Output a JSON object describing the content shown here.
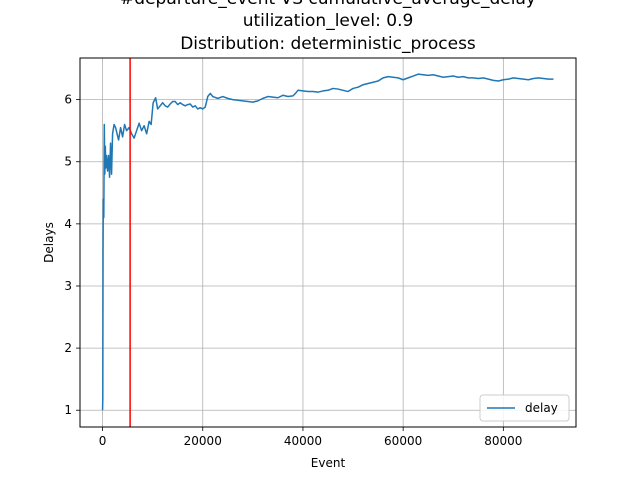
{
  "chart_data": {
    "type": "line",
    "title_lines": [
      "#departure_event VS cumulative_average_delay",
      "utilization_level: 0.9",
      "Distribution: deterministic_process"
    ],
    "xlabel": "Event",
    "ylabel": "Delays",
    "xlim": [
      -4500,
      94500
    ],
    "ylim": [
      0.73,
      6.67
    ],
    "x_ticks": [
      0,
      20000,
      40000,
      60000,
      80000
    ],
    "y_ticks": [
      1,
      2,
      3,
      4,
      5,
      6
    ],
    "grid": true,
    "legend_position": "lower right",
    "series": [
      {
        "name": "delay",
        "color": "#1f77b4",
        "points": [
          [
            0,
            1.0
          ],
          [
            50,
            1.2
          ],
          [
            100,
            3.6
          ],
          [
            150,
            4.4
          ],
          [
            250,
            4.1
          ],
          [
            350,
            5.6
          ],
          [
            450,
            4.8
          ],
          [
            550,
            5.25
          ],
          [
            650,
            4.9
          ],
          [
            800,
            5.1
          ],
          [
            1000,
            4.85
          ],
          [
            1200,
            5.1
          ],
          [
            1400,
            4.75
          ],
          [
            1600,
            5.3
          ],
          [
            1800,
            4.8
          ],
          [
            2000,
            5.45
          ],
          [
            2300,
            5.6
          ],
          [
            2600,
            5.55
          ],
          [
            2900,
            5.45
          ],
          [
            3200,
            5.35
          ],
          [
            3600,
            5.55
          ],
          [
            4000,
            5.4
          ],
          [
            4400,
            5.6
          ],
          [
            4800,
            5.5
          ],
          [
            5300,
            5.55
          ],
          [
            5800,
            5.45
          ],
          [
            6300,
            5.38
          ],
          [
            6800,
            5.5
          ],
          [
            7300,
            5.62
          ],
          [
            7800,
            5.5
          ],
          [
            8300,
            5.58
          ],
          [
            8800,
            5.45
          ],
          [
            9300,
            5.65
          ],
          [
            9700,
            5.6
          ],
          [
            10100,
            5.95
          ],
          [
            10600,
            6.03
          ],
          [
            11000,
            5.85
          ],
          [
            11500,
            5.9
          ],
          [
            12000,
            5.95
          ],
          [
            12500,
            5.9
          ],
          [
            13000,
            5.88
          ],
          [
            13500,
            5.93
          ],
          [
            14000,
            5.97
          ],
          [
            14500,
            5.97
          ],
          [
            15000,
            5.92
          ],
          [
            15500,
            5.95
          ],
          [
            16000,
            5.92
          ],
          [
            16500,
            5.9
          ],
          [
            17000,
            5.92
          ],
          [
            17500,
            5.93
          ],
          [
            18000,
            5.88
          ],
          [
            18500,
            5.9
          ],
          [
            19000,
            5.85
          ],
          [
            19500,
            5.87
          ],
          [
            20000,
            5.85
          ],
          [
            20500,
            5.88
          ],
          [
            21000,
            6.05
          ],
          [
            21500,
            6.1
          ],
          [
            22000,
            6.05
          ],
          [
            23000,
            6.02
          ],
          [
            24000,
            6.05
          ],
          [
            25000,
            6.02
          ],
          [
            26000,
            6.0
          ],
          [
            27000,
            5.99
          ],
          [
            28000,
            5.98
          ],
          [
            29000,
            5.97
          ],
          [
            30000,
            5.96
          ],
          [
            31000,
            5.98
          ],
          [
            32000,
            6.02
          ],
          [
            33000,
            6.05
          ],
          [
            34000,
            6.04
          ],
          [
            35000,
            6.03
          ],
          [
            36000,
            6.07
          ],
          [
            37000,
            6.05
          ],
          [
            38000,
            6.06
          ],
          [
            38500,
            6.1
          ],
          [
            39000,
            6.15
          ],
          [
            40000,
            6.14
          ],
          [
            41000,
            6.13
          ],
          [
            42000,
            6.13
          ],
          [
            43000,
            6.12
          ],
          [
            44000,
            6.14
          ],
          [
            45000,
            6.15
          ],
          [
            46000,
            6.18
          ],
          [
            47000,
            6.17
          ],
          [
            48000,
            6.15
          ],
          [
            49000,
            6.13
          ],
          [
            50000,
            6.18
          ],
          [
            51000,
            6.2
          ],
          [
            52000,
            6.24
          ],
          [
            53000,
            6.26
          ],
          [
            54000,
            6.28
          ],
          [
            55000,
            6.3
          ],
          [
            56000,
            6.35
          ],
          [
            57000,
            6.37
          ],
          [
            58000,
            6.36
          ],
          [
            59000,
            6.35
          ],
          [
            60000,
            6.32
          ],
          [
            61000,
            6.35
          ],
          [
            62000,
            6.38
          ],
          [
            63000,
            6.41
          ],
          [
            64000,
            6.4
          ],
          [
            65000,
            6.39
          ],
          [
            66000,
            6.4
          ],
          [
            67000,
            6.38
          ],
          [
            68000,
            6.36
          ],
          [
            69000,
            6.37
          ],
          [
            70000,
            6.38
          ],
          [
            71000,
            6.36
          ],
          [
            72000,
            6.37
          ],
          [
            73000,
            6.35
          ],
          [
            74000,
            6.35
          ],
          [
            75000,
            6.34
          ],
          [
            76000,
            6.35
          ],
          [
            77000,
            6.33
          ],
          [
            78000,
            6.31
          ],
          [
            79000,
            6.3
          ],
          [
            80000,
            6.32
          ],
          [
            81000,
            6.33
          ],
          [
            82000,
            6.35
          ],
          [
            83000,
            6.34
          ],
          [
            84000,
            6.33
          ],
          [
            85000,
            6.32
          ],
          [
            86000,
            6.34
          ],
          [
            87000,
            6.35
          ],
          [
            88000,
            6.34
          ],
          [
            89000,
            6.33
          ],
          [
            90000,
            6.33
          ]
        ]
      }
    ],
    "vertical_line": {
      "x": 5500,
      "color": "#ff0000"
    }
  }
}
